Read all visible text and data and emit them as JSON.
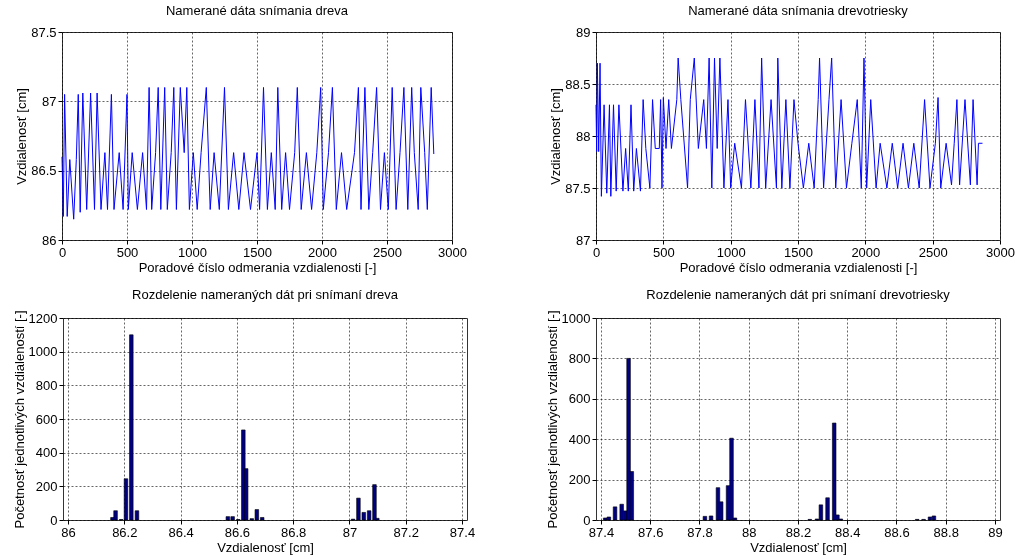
{
  "chart_data": [
    {
      "type": "line",
      "title": "Namerané dáta snímania dreva",
      "xlabel": "Poradové číslo odmerania vzdialenosti [-]",
      "ylabel": "Vzdialenosť [cm]",
      "xlim": [
        0,
        3000
      ],
      "xticks": [
        0,
        500,
        1000,
        1500,
        2000,
        2500,
        3000
      ],
      "ylim": [
        86,
        87.5
      ],
      "yticks": [
        86,
        86.5,
        87,
        87.5
      ],
      "grid": true,
      "x": [
        0,
        10,
        20,
        40,
        60,
        90,
        110,
        125,
        140,
        160,
        190,
        220,
        250,
        270,
        300,
        330,
        350,
        380,
        400,
        440,
        470,
        500,
        510,
        540,
        580,
        620,
        650,
        670,
        690,
        720,
        740,
        760,
        790,
        810,
        840,
        860,
        880,
        910,
        940,
        960,
        980,
        1010,
        1040,
        1070,
        1110,
        1140,
        1170,
        1210,
        1250,
        1280,
        1320,
        1360,
        1400,
        1450,
        1500,
        1520,
        1550,
        1580,
        1610,
        1640,
        1660,
        1690,
        1720,
        1750,
        1790,
        1810,
        1840,
        1880,
        1920,
        1960,
        1990,
        2010,
        2050,
        2080,
        2110,
        2150,
        2190,
        2250,
        2280,
        2300,
        2330,
        2360,
        2390,
        2420,
        2450,
        2480,
        2510,
        2540,
        2570,
        2600,
        2630,
        2660,
        2690,
        2710,
        2740,
        2760,
        2790,
        2810,
        2840,
        2860
      ],
      "series": [
        {
          "color": "#0000ff",
          "values": [
            86.6,
            86.17,
            87.05,
            86.17,
            86.58,
            86.15,
            86.58,
            87.05,
            86.2,
            87.06,
            86.22,
            87.06,
            86.22,
            87.06,
            86.22,
            86.63,
            86.22,
            87.05,
            86.22,
            86.63,
            86.22,
            87.05,
            86.22,
            86.63,
            86.22,
            86.63,
            86.22,
            87.1,
            86.22,
            86.63,
            87.1,
            86.22,
            87.1,
            86.22,
            86.63,
            87.1,
            86.22,
            87.1,
            86.63,
            87.1,
            86.22,
            86.63,
            86.22,
            86.63,
            87.1,
            86.22,
            86.63,
            86.22,
            87.1,
            86.22,
            86.63,
            86.22,
            86.63,
            86.22,
            86.63,
            86.22,
            87.1,
            86.22,
            86.63,
            86.22,
            87.1,
            86.22,
            86.63,
            86.22,
            86.63,
            87.1,
            86.22,
            86.63,
            86.22,
            86.63,
            87.1,
            86.22,
            86.63,
            87.1,
            86.22,
            86.63,
            86.22,
            86.63,
            87.1,
            86.22,
            87.1,
            86.22,
            86.63,
            87.1,
            86.22,
            86.63,
            86.22,
            87.1,
            86.22,
            86.63,
            87.1,
            86.22,
            87.1,
            86.63,
            86.22,
            87.1,
            86.63,
            86.22,
            87.1,
            86.62
          ]
        }
      ]
    },
    {
      "type": "line",
      "title": "Namerané dáta snímania drevotriesky",
      "xlabel": "Poradové číslo odmerania vzdialenosti [-]",
      "ylabel": "Vzdialenosť [cm]",
      "xlim": [
        0,
        3000
      ],
      "xticks": [
        0,
        500,
        1000,
        1500,
        2000,
        2500,
        3000
      ],
      "ylim": [
        87,
        89
      ],
      "yticks": [
        87,
        87.5,
        88,
        88.5,
        89
      ],
      "grid": true,
      "x": [
        0,
        5,
        10,
        20,
        30,
        40,
        60,
        80,
        100,
        110,
        130,
        150,
        170,
        200,
        220,
        240,
        260,
        280,
        300,
        330,
        350,
        370,
        400,
        420,
        440,
        470,
        480,
        490,
        500,
        520,
        540,
        560,
        600,
        610,
        630,
        680,
        700,
        730,
        760,
        800,
        820,
        840,
        860,
        880,
        900,
        920,
        950,
        980,
        1000,
        1030,
        1080,
        1110,
        1150,
        1180,
        1210,
        1230,
        1260,
        1300,
        1340,
        1350,
        1380,
        1410,
        1440,
        1470,
        1500,
        1540,
        1580,
        1620,
        1650,
        1660,
        1690,
        1730,
        1750,
        1780,
        1820,
        1860,
        1900,
        1940,
        1970,
        1990,
        2010,
        2040,
        2080,
        2110,
        2160,
        2200,
        2240,
        2280,
        2320,
        2360,
        2400,
        2440,
        2480,
        2520,
        2540,
        2560,
        2600,
        2640,
        2660,
        2680,
        2700,
        2740,
        2780,
        2800,
        2830,
        2840,
        2870
      ],
      "series": [
        {
          "color": "#0000ff",
          "values": [
            88.3,
            87.85,
            88.7,
            87.85,
            88.7,
            87.42,
            88.3,
            87.45,
            88.3,
            87.42,
            88.3,
            87.47,
            88.3,
            87.47,
            87.88,
            87.47,
            88.3,
            87.47,
            87.88,
            87.47,
            88.35,
            87.88,
            87.5,
            88.35,
            87.88,
            87.88,
            88.35,
            87.5,
            88.37,
            87.88,
            88.35,
            87.88,
            88.35,
            88.75,
            88.35,
            87.5,
            88.35,
            88.75,
            87.88,
            88.35,
            87.88,
            88.75,
            87.5,
            88.75,
            87.88,
            88.75,
            87.5,
            88.35,
            87.5,
            87.93,
            87.5,
            88.35,
            87.5,
            88.35,
            87.5,
            88.75,
            87.5,
            88.35,
            87.5,
            88.75,
            87.5,
            88.35,
            87.5,
            88.35,
            87.93,
            87.5,
            87.93,
            87.5,
            88.35,
            88.75,
            87.5,
            88.35,
            88.75,
            87.5,
            88.35,
            87.5,
            87.93,
            88.35,
            87.5,
            88.75,
            87.5,
            88.35,
            87.5,
            87.93,
            87.5,
            87.93,
            87.5,
            87.93,
            87.5,
            87.93,
            87.5,
            88.35,
            87.5,
            87.93,
            88.37,
            87.5,
            87.93,
            87.53,
            87.93,
            88.35,
            87.53,
            88.35,
            87.53,
            88.35,
            87.53,
            87.93,
            87.93
          ]
        }
      ]
    },
    {
      "type": "bar",
      "title": "Rozdelenie nameraných dát pri snímaní dreva",
      "xlabel": "Vzdialenosť [cm]",
      "ylabel": "Početnosť jednotlivých vzdialeností [-]",
      "xlim": [
        86,
        87.4
      ],
      "xticks": [
        86,
        86.2,
        86.4,
        86.6,
        86.8,
        87,
        87.2,
        87.4
      ],
      "ylim": [
        0,
        1200
      ],
      "yticks": [
        0,
        200,
        400,
        600,
        800,
        1000,
        1200
      ],
      "grid": true,
      "x": [
        86.158,
        86.169,
        86.189,
        86.206,
        86.225,
        86.245,
        86.568,
        86.585,
        86.605,
        86.623,
        86.633,
        86.653,
        86.671,
        86.69,
        87.013,
        87.032,
        87.051,
        87.07,
        87.089,
        87.099
      ],
      "series": [
        {
          "color": "#000080",
          "values": [
            15,
            55,
            3,
            245,
            1100,
            55,
            20,
            20,
            3,
            535,
            305,
            8,
            62,
            15,
            5,
            130,
            45,
            55,
            210,
            10
          ]
        }
      ]
    },
    {
      "type": "bar",
      "title": "Rozdelenie nameraných dát pri snímaní drevotriesky",
      "xlabel": "Vzdialenosť [cm]",
      "ylabel": "Početnosť jednotlivých vzdialeností [-]",
      "xlim": [
        87.4,
        89
      ],
      "xticks": [
        87.4,
        87.6,
        87.8,
        88,
        88.2,
        88.4,
        88.6,
        88.8,
        89
      ],
      "ylim": [
        0,
        1000
      ],
      "yticks": [
        0,
        200,
        400,
        600,
        800,
        1000
      ],
      "grid": true,
      "x": [
        87.417,
        87.432,
        87.457,
        87.484,
        87.499,
        87.512,
        87.525,
        87.822,
        87.847,
        87.875,
        87.888,
        87.916,
        87.93,
        87.944,
        88.248,
        88.277,
        88.293,
        88.32,
        88.347,
        88.36,
        88.374,
        88.684,
        88.71,
        88.736,
        88.752
      ],
      "series": [
        {
          "color": "#000080",
          "values": [
            10,
            15,
            65,
            78,
            45,
            800,
            240,
            18,
            20,
            160,
            90,
            170,
            405,
            10,
            3,
            5,
            75,
            110,
            480,
            25,
            5,
            3,
            3,
            15,
            20
          ]
        }
      ]
    }
  ]
}
